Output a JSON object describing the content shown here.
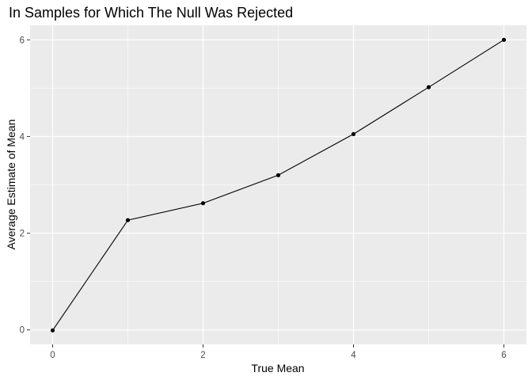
{
  "chart_data": {
    "type": "line",
    "title": "In Samples for Which The Null Was Rejected",
    "xlabel": "True Mean",
    "ylabel": "Average Estimate of Mean",
    "x": [
      0,
      1,
      2,
      3,
      4,
      5,
      6
    ],
    "series": [
      {
        "values": [
          -0.01,
          2.27,
          2.62,
          3.2,
          4.05,
          5.02,
          6.0
        ]
      }
    ],
    "xlim": [
      -0.3,
      6.3
    ],
    "ylim": [
      -0.3,
      6.3
    ],
    "x_ticks": [
      0,
      2,
      4,
      6
    ],
    "y_ticks": [
      0,
      2,
      4,
      6
    ],
    "x_tick_labels": [
      "0",
      "2",
      "4",
      "6"
    ],
    "y_tick_labels": [
      "0",
      "2",
      "4",
      "6"
    ],
    "grid": true,
    "legend": "none",
    "colors": {
      "panel_background": "#ebebeb",
      "grid": "#ffffff",
      "line": "#000000",
      "point": "#000000",
      "tick_label": "#4d4d4d"
    }
  }
}
